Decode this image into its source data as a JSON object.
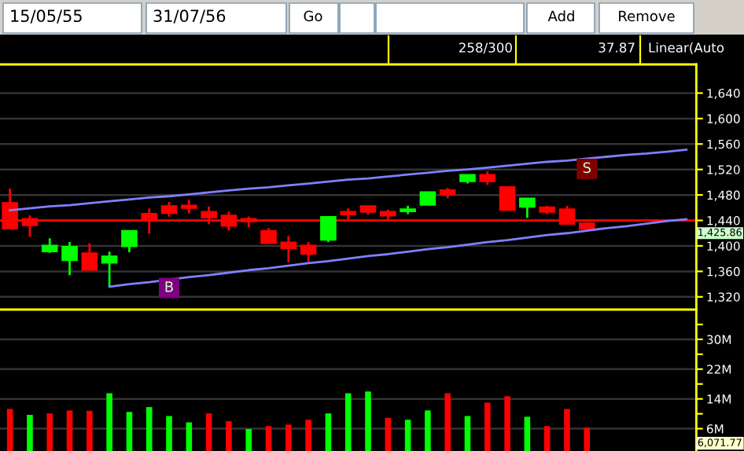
{
  "chart_data": [
    {
      "type": "candlestick",
      "categories": [
        null,
        null,
        null,
        null,
        null,
        null,
        null,
        null,
        null,
        null,
        null,
        null,
        null,
        null,
        null,
        null,
        null,
        null,
        null,
        null,
        null,
        null,
        null,
        null,
        null,
        null,
        null,
        null,
        null,
        null,
        null,
        null,
        null,
        null,
        null
      ],
      "ohlc": [
        [
          1468,
          1490,
          1427,
          1427
        ],
        [
          1443,
          1448,
          1414,
          1432
        ],
        [
          1391,
          1412,
          1389,
          1401
        ],
        [
          1377,
          1406,
          1354,
          1399
        ],
        [
          1389,
          1404,
          1362,
          1362
        ],
        [
          1373,
          1391,
          1336,
          1384
        ],
        [
          1399,
          1424,
          1390,
          1424
        ],
        [
          1451,
          1459,
          1419,
          1441
        ],
        [
          1463,
          1469,
          1446,
          1451
        ],
        [
          1464,
          1472,
          1451,
          1459
        ],
        [
          1454,
          1462,
          1434,
          1444
        ],
        [
          1448,
          1454,
          1424,
          1431
        ],
        [
          1443,
          1446,
          1429,
          1438
        ],
        [
          1424,
          1428,
          1404,
          1404
        ],
        [
          1406,
          1416,
          1374,
          1396
        ],
        [
          1401,
          1406,
          1375,
          1387
        ],
        [
          1409,
          1446,
          1406,
          1446
        ],
        [
          1454,
          1459,
          1441,
          1449
        ],
        [
          1463,
          1463,
          1449,
          1453
        ],
        [
          1454,
          1457,
          1438,
          1447
        ],
        [
          1454,
          1463,
          1450,
          1458
        ],
        [
          1464,
          1485,
          1464,
          1485
        ],
        [
          1488,
          1491,
          1475,
          1480
        ],
        [
          1501,
          1512,
          1498,
          1512
        ],
        [
          1512,
          1517,
          1496,
          1501
        ],
        [
          1493,
          1493,
          1456,
          1456
        ],
        [
          1461,
          1475,
          1444,
          1475
        ],
        [
          1461,
          1463,
          1450,
          1453
        ],
        [
          1458,
          1463,
          1434,
          1434
        ],
        [
          1436,
          1436,
          1426,
          1426
        ],
        null,
        null,
        null,
        null,
        null
      ],
      "colors": [
        "#ff0000",
        "#ff0000",
        "#00ff00",
        "#00ff00",
        "#ff0000",
        "#00ff00",
        "#00ff00",
        "#ff0000",
        "#ff0000",
        "#ff0000",
        "#ff0000",
        "#ff0000",
        "#ff0000",
        "#ff0000",
        "#ff0000",
        "#ff0000",
        "#00ff00",
        "#ff0000",
        "#ff0000",
        "#ff0000",
        "#00ff00",
        "#00ff00",
        "#ff0000",
        "#00ff00",
        "#ff0000",
        "#ff0000",
        "#00ff00",
        "#ff0000",
        "#ff0000",
        "#ff0000",
        null,
        null,
        null,
        null,
        null
      ],
      "series": [
        {
          "type": "line",
          "color": "#8080ff",
          "values": [
            1456,
            1459,
            1462,
            1464,
            1467,
            1470,
            1473,
            1476,
            1478,
            1481,
            1484,
            1487,
            1490,
            1492,
            1495,
            1498,
            1501,
            1504,
            1506,
            1509,
            1512,
            1515,
            1518,
            1520,
            1523,
            1526,
            1529,
            1532,
            1534,
            1537,
            1540,
            1543,
            1545,
            1548,
            1551
          ]
        },
        {
          "type": "line",
          "color": "#8080ff",
          "values": [
            null,
            null,
            null,
            null,
            null,
            1336,
            1340,
            1343,
            1347,
            1351,
            1354,
            1358,
            1362,
            1365,
            1369,
            1373,
            1376,
            1380,
            1384,
            1387,
            1391,
            1395,
            1398,
            1402,
            1406,
            1409,
            1413,
            1417,
            1420,
            1424,
            1428,
            1431,
            1435,
            1439,
            1442
          ]
        },
        {
          "type": "scatter",
          "marker": "square",
          "color": "#800080",
          "values": [
            null,
            null,
            null,
            null,
            null,
            null,
            null,
            null,
            1334,
            null,
            null,
            null,
            null,
            null,
            null,
            null,
            null,
            null,
            null,
            null,
            null,
            null,
            null,
            null,
            null,
            null,
            null,
            null,
            null,
            null,
            null,
            null,
            null,
            null,
            null
          ],
          "value_labels": [
            null,
            null,
            null,
            null,
            null,
            null,
            null,
            null,
            "B",
            null,
            null,
            null,
            null,
            null,
            null,
            null,
            null,
            null,
            null,
            null,
            null,
            null,
            null,
            null,
            null,
            null,
            null,
            null,
            null,
            null,
            null,
            null,
            null,
            null,
            null
          ]
        },
        {
          "type": "scatter",
          "marker": "square",
          "color": "#800000",
          "values": [
            null,
            null,
            null,
            null,
            null,
            null,
            null,
            null,
            null,
            null,
            null,
            null,
            null,
            null,
            null,
            null,
            null,
            null,
            null,
            null,
            null,
            null,
            null,
            null,
            null,
            null,
            null,
            null,
            null,
            1521,
            null,
            null,
            null,
            null,
            null
          ],
          "value_labels": [
            null,
            null,
            null,
            null,
            null,
            null,
            null,
            null,
            null,
            null,
            null,
            null,
            null,
            null,
            null,
            null,
            null,
            null,
            null,
            null,
            null,
            null,
            null,
            null,
            null,
            null,
            null,
            null,
            null,
            "S",
            null,
            null,
            null,
            null,
            null
          ]
        }
      ],
      "ylim": [
        1300,
        1685
      ],
      "yticks": [
        {
          "value": 1320,
          "label": "1,320"
        },
        {
          "value": 1360,
          "label": "1,360"
        },
        {
          "value": 1400,
          "label": "1,400"
        },
        {
          "value": 1440,
          "label": "1,440"
        },
        {
          "value": 1480,
          "label": "1,480"
        },
        {
          "value": 1520,
          "label": "1,520"
        },
        {
          "value": 1560,
          "label": "1,560"
        },
        {
          "value": 1600,
          "label": "1,600"
        },
        {
          "value": 1640,
          "label": "1,640"
        }
      ],
      "ref_lines": [
        {
          "axis": "y",
          "value": 1440,
          "color": "#ff0000"
        }
      ],
      "grid": "y",
      "tick_labels": "y",
      "annotations": [
        "15/05/55",
        "31/07/56",
        "Go",
        "Add",
        "Remove",
        "258/300",
        "37.87",
        "Linear(Auto",
        "1,425.86"
      ]
    },
    {
      "type": "bar",
      "categories": [
        null,
        null,
        null,
        null,
        null,
        null,
        null,
        null,
        null,
        null,
        null,
        null,
        null,
        null,
        null,
        null,
        null,
        null,
        null,
        null,
        null,
        null,
        null,
        null,
        null,
        null,
        null,
        null,
        null,
        null,
        null,
        null,
        null,
        null,
        null
      ],
      "values": [
        11.3,
        9.7,
        10.1,
        10.9,
        10.8,
        15.5,
        10.5,
        11.8,
        9.4,
        7.7,
        10.1,
        8.0,
        5.9,
        6.7,
        7.1,
        8.4,
        10.1,
        15.5,
        16.0,
        8.9,
        8.4,
        10.9,
        15.5,
        9.4,
        13.0,
        14.7,
        9.2,
        6.7,
        11.3,
        6.3,
        null,
        null,
        null,
        null,
        null
      ],
      "colors": [
        "#ff0000",
        "#00ff00",
        "#ff0000",
        "#ff0000",
        "#ff0000",
        "#00ff00",
        "#00ff00",
        "#00ff00",
        "#00ff00",
        "#00ff00",
        "#ff0000",
        "#ff0000",
        "#00ff00",
        "#ff0000",
        "#ff0000",
        "#ff0000",
        "#00ff00",
        "#00ff00",
        "#00ff00",
        "#ff0000",
        "#00ff00",
        "#00ff00",
        "#ff0000",
        "#00ff00",
        "#ff0000",
        "#ff0000",
        "#00ff00",
        "#ff0000",
        "#ff0000",
        "#ff0000",
        null,
        null,
        null,
        null,
        null
      ],
      "ylim": [
        0,
        38
      ],
      "yticks": [
        {
          "value": 6,
          "label": "6M"
        },
        {
          "value": 10,
          "label": null
        },
        {
          "value": 14,
          "label": "14M"
        },
        {
          "value": 18,
          "label": null
        },
        {
          "value": 22,
          "label": "22M"
        },
        {
          "value": 26,
          "label": null
        },
        {
          "value": 30,
          "label": "30M"
        },
        {
          "value": 34,
          "label": null
        }
      ],
      "grid": "y",
      "tick_labels": "y",
      "annotations": [
        "6,071.77"
      ]
    }
  ]
}
